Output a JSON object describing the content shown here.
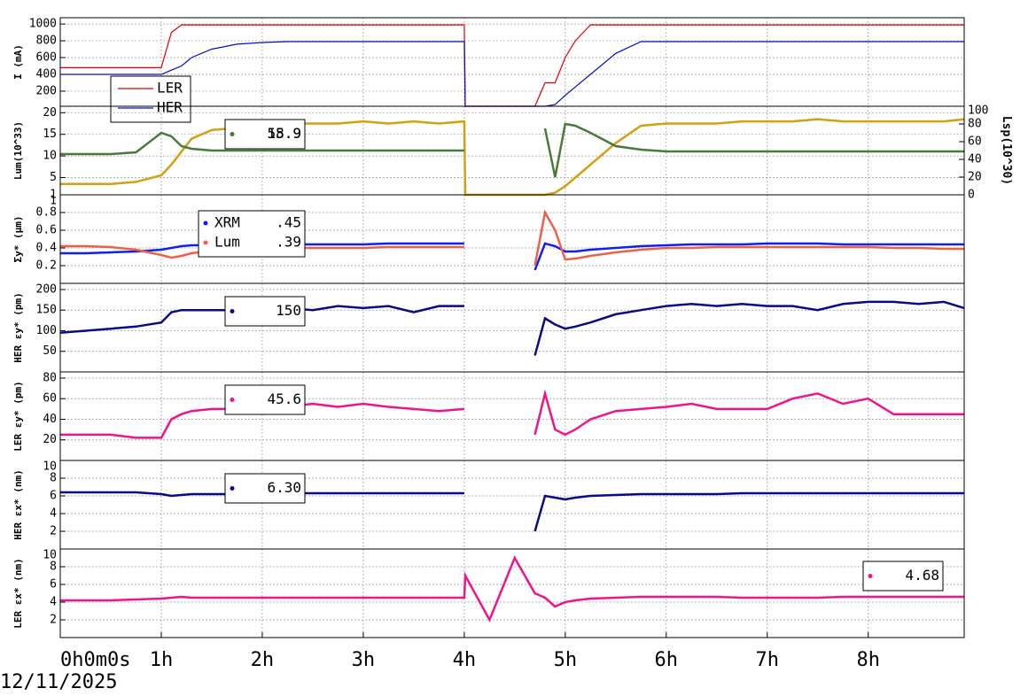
{
  "time_axis": {
    "xlim": [
      0,
      8.95
    ],
    "x": [
      0,
      0.25,
      0.5,
      0.75,
      1,
      1.1,
      1.2,
      1.3,
      1.5,
      1.75,
      2,
      2.25,
      2.5,
      2.75,
      3,
      3.25,
      3.5,
      3.75,
      4,
      4.01,
      4.25,
      4.5,
      4.7,
      4.8,
      4.9,
      5,
      5.1,
      5.25,
      5.5,
      5.75,
      6,
      6.25,
      6.5,
      6.75,
      7,
      7.25,
      7.5,
      7.75,
      8,
      8.25,
      8.5,
      8.75,
      8.95
    ],
    "xticks": [
      {
        "value": 0,
        "label": "0h0m0s"
      },
      {
        "value": 1,
        "label": "1h"
      },
      {
        "value": 2,
        "label": "2h"
      },
      {
        "value": 3,
        "label": "3h"
      },
      {
        "value": 4,
        "label": "4h"
      },
      {
        "value": 5,
        "label": "5h"
      },
      {
        "value": 6,
        "label": "6h"
      },
      {
        "value": 7,
        "label": "7h"
      },
      {
        "value": 8,
        "label": "8h"
      }
    ],
    "date": "12/11/2025"
  },
  "chart_data": [
    {
      "type": "line",
      "y_label": "I (mA)",
      "ylim": [
        20,
        1075
      ],
      "yticks": [
        200,
        400,
        600,
        800,
        1000
      ],
      "grid": true,
      "series": [
        {
          "name": "LER",
          "color": "#e00000",
          "values": [
            480,
            480,
            480,
            480,
            480,
            900,
            990,
            990,
            990,
            990,
            990,
            990,
            990,
            990,
            990,
            990,
            990,
            990,
            990,
            20,
            20,
            20,
            20,
            300,
            300,
            600,
            800,
            990,
            990,
            990,
            990,
            990,
            990,
            990,
            990,
            990,
            990,
            990,
            990,
            990,
            990,
            990,
            990
          ]
        },
        {
          "name": "HER",
          "color": "#0010c0",
          "values": [
            400,
            400,
            400,
            400,
            400,
            450,
            500,
            600,
            700,
            760,
            780,
            790,
            790,
            790,
            790,
            790,
            790,
            790,
            790,
            20,
            20,
            20,
            20,
            20,
            40,
            150,
            250,
            400,
            650,
            790,
            790,
            790,
            790,
            790,
            790,
            790,
            790,
            790,
            790,
            790,
            790,
            790,
            790
          ]
        }
      ]
    },
    {
      "type": "line",
      "y_label": "Lum(10^33)",
      "y2_label": "Lsp(10^30)",
      "ylim": [
        1,
        21.5
      ],
      "yticks": [
        1,
        5,
        10,
        15,
        20
      ],
      "y2lim": [
        0,
        100
      ],
      "y2ticks": [
        0,
        20,
        40,
        60,
        80,
        100
      ],
      "grid": true,
      "series": [
        {
          "readout": "15.9",
          "color": "#d4a010",
          "values": [
            3.5,
            3.5,
            3.5,
            4,
            5.5,
            8,
            11,
            14,
            16,
            16.5,
            17,
            17.5,
            17.5,
            17.5,
            18,
            17.5,
            18,
            17.5,
            18,
            1,
            1,
            1,
            1,
            1,
            1.5,
            3,
            5,
            8,
            13,
            17,
            17.5,
            17.5,
            17.5,
            18,
            18,
            18,
            18.5,
            18,
            18,
            18,
            18,
            18,
            18.5
          ]
        },
        {
          "readout": "58.9",
          "color": "#4a7a3a",
          "axis": "y2",
          "values": [
            46,
            46,
            46,
            48,
            70,
            66,
            55,
            52,
            50,
            50,
            50,
            50,
            50,
            50,
            50,
            50,
            50,
            50,
            50,
            null,
            null,
            null,
            null,
            75,
            20,
            80,
            78,
            70,
            55,
            51,
            49,
            49,
            49,
            49,
            49,
            49,
            49,
            49,
            49,
            49,
            49,
            49,
            49
          ]
        }
      ]
    },
    {
      "type": "line",
      "y_label": "Σy* (μm)",
      "ylim": [
        0,
        1
      ],
      "yticks": [
        0.2,
        0.4,
        0.6,
        0.8,
        1
      ],
      "grid": true,
      "series": [
        {
          "name": "XRM",
          "readout": ".45",
          "color": "#1020f0",
          "values": [
            0.34,
            0.34,
            0.35,
            0.36,
            0.38,
            0.4,
            0.42,
            0.43,
            0.43,
            0.44,
            0.44,
            0.44,
            0.44,
            0.44,
            0.44,
            0.45,
            0.45,
            0.45,
            0.45,
            null,
            null,
            null,
            0.15,
            0.45,
            0.42,
            0.36,
            0.36,
            0.38,
            0.4,
            0.42,
            0.43,
            0.44,
            0.44,
            0.44,
            0.45,
            0.45,
            0.45,
            0.44,
            0.44,
            0.44,
            0.44,
            0.44,
            0.44
          ]
        },
        {
          "name": "Lum",
          "readout": ".39",
          "color": "#f06048",
          "values": [
            0.42,
            0.42,
            0.41,
            0.38,
            0.32,
            0.29,
            0.31,
            0.34,
            0.37,
            0.39,
            0.4,
            0.4,
            0.4,
            0.4,
            0.4,
            0.41,
            0.41,
            0.41,
            0.41,
            null,
            null,
            null,
            0.2,
            0.8,
            0.6,
            0.27,
            0.28,
            0.31,
            0.35,
            0.38,
            0.4,
            0.4,
            0.41,
            0.41,
            0.41,
            0.41,
            0.41,
            0.41,
            0.41,
            0.4,
            0.4,
            0.39,
            0.39
          ]
        }
      ]
    },
    {
      "type": "line",
      "y_label": "HER εy* (pm)",
      "ylim": [
        0,
        215
      ],
      "yticks": [
        50,
        100,
        150,
        200
      ],
      "grid": true,
      "series": [
        {
          "readout": "150",
          "color": "#0a0a88",
          "values": [
            95,
            100,
            105,
            110,
            120,
            145,
            150,
            150,
            150,
            150,
            150,
            155,
            150,
            160,
            155,
            160,
            145,
            160,
            160,
            null,
            null,
            null,
            40,
            130,
            115,
            105,
            110,
            120,
            140,
            150,
            160,
            165,
            160,
            165,
            160,
            160,
            150,
            165,
            170,
            170,
            165,
            170,
            155
          ]
        }
      ]
    },
    {
      "type": "line",
      "y_label": "LER εy* (pm)",
      "ylim": [
        0,
        86
      ],
      "yticks": [
        20,
        40,
        60,
        80
      ],
      "grid": true,
      "series": [
        {
          "readout": "45.6",
          "color": "#f0148c",
          "values": [
            25,
            25,
            25,
            22,
            22,
            40,
            45,
            48,
            50,
            50,
            52,
            52,
            55,
            52,
            55,
            52,
            50,
            48,
            50,
            null,
            null,
            null,
            25,
            65,
            30,
            25,
            30,
            40,
            48,
            50,
            52,
            55,
            50,
            50,
            50,
            60,
            65,
            55,
            60,
            45,
            45,
            45,
            45
          ]
        }
      ]
    },
    {
      "type": "line",
      "y_label": "HER εx* (nm)",
      "ylim": [
        0,
        10
      ],
      "yticks": [
        2,
        4,
        6,
        8,
        10
      ],
      "grid": true,
      "series": [
        {
          "readout": "6.30",
          "color": "#0a0a88",
          "values": [
            6.4,
            6.4,
            6.4,
            6.4,
            6.2,
            6.0,
            6.1,
            6.2,
            6.2,
            6.2,
            6.3,
            6.3,
            6.3,
            6.3,
            6.3,
            6.3,
            6.3,
            6.3,
            6.3,
            null,
            null,
            null,
            2,
            6,
            5.8,
            5.6,
            5.8,
            6.0,
            6.1,
            6.2,
            6.2,
            6.2,
            6.2,
            6.3,
            6.3,
            6.3,
            6.3,
            6.3,
            6.3,
            6.3,
            6.3,
            6.3,
            6.3
          ]
        }
      ]
    },
    {
      "type": "line",
      "y_label": "LER εx* (nm)",
      "ylim": [
        0,
        10
      ],
      "yticks": [
        2,
        4,
        6,
        8,
        10
      ],
      "grid": true,
      "series": [
        {
          "readout": "4.68",
          "color": "#f0148c",
          "values": [
            4.2,
            4.2,
            4.2,
            4.3,
            4.4,
            4.5,
            4.6,
            4.5,
            4.5,
            4.5,
            4.5,
            4.5,
            4.5,
            4.5,
            4.5,
            4.5,
            4.5,
            4.5,
            4.5,
            7,
            2,
            9,
            5,
            4.5,
            3.5,
            4.0,
            4.2,
            4.4,
            4.5,
            4.6,
            4.6,
            4.6,
            4.6,
            4.5,
            4.5,
            4.5,
            4.5,
            4.6,
            4.6,
            4.6,
            4.6,
            4.6,
            4.6
          ]
        }
      ]
    }
  ]
}
